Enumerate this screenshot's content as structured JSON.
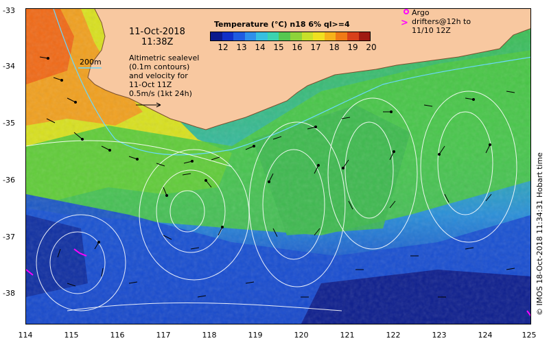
{
  "map": {
    "date": "11-Oct-2018",
    "time": "11:38Z",
    "depth_label": "200m",
    "sealevel_note": [
      "Altimetric sealevel",
      "(0.1m contours)",
      "and velocity for",
      "11-Oct 11Z",
      "0.5m/s (1kt 24h)"
    ],
    "colorbar_title": "Temperature (°C) n18 6% ql>=4",
    "colorbar_ticks": [
      "12",
      "13",
      "14",
      "15",
      "16",
      "17",
      "18",
      "19",
      "20"
    ],
    "colorbar_colors": [
      "#0a1a8c",
      "#1030c8",
      "#1f5be0",
      "#2e8fea",
      "#36bfe0",
      "#3bd3b0",
      "#55c850",
      "#8ed33a",
      "#c8e02a",
      "#f0e020",
      "#f7b21a",
      "#f07a16",
      "#d8401a",
      "#a01a12"
    ],
    "argo_legend": [
      "Argo",
      "drifters@12h to",
      "11/10 12Z"
    ],
    "credit": "© IMOS 18-Oct-2018 11:34:31 Hobart time",
    "lat_labels": [
      "-33",
      "-34",
      "-35",
      "-36",
      "-37",
      "-38"
    ],
    "lon_labels": [
      "114",
      "115",
      "116",
      "117",
      "118",
      "119",
      "120",
      "121",
      "122",
      "123",
      "124",
      "125"
    ],
    "land_color": "#f8c8a0",
    "contour_color": "#ffffff",
    "argo_color": "#ff00ff"
  }
}
